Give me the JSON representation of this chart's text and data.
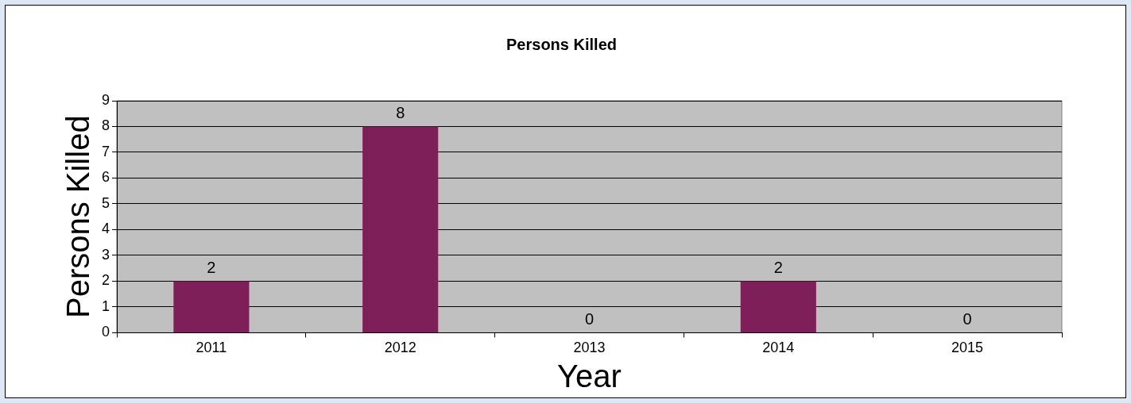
{
  "chart_data": {
    "type": "bar",
    "title": "Persons Killed",
    "xlabel": "Year",
    "ylabel": "Persons Killed",
    "categories": [
      "2011",
      "2012",
      "2013",
      "2014",
      "2015"
    ],
    "values": [
      2,
      8,
      0,
      2,
      0
    ],
    "color": "#7f1f5a",
    "ylim": [
      0,
      9
    ],
    "yticks": [
      0,
      1,
      2,
      3,
      4,
      5,
      6,
      7,
      8,
      9
    ],
    "grid": "y",
    "legend": false,
    "data_labels": true
  }
}
